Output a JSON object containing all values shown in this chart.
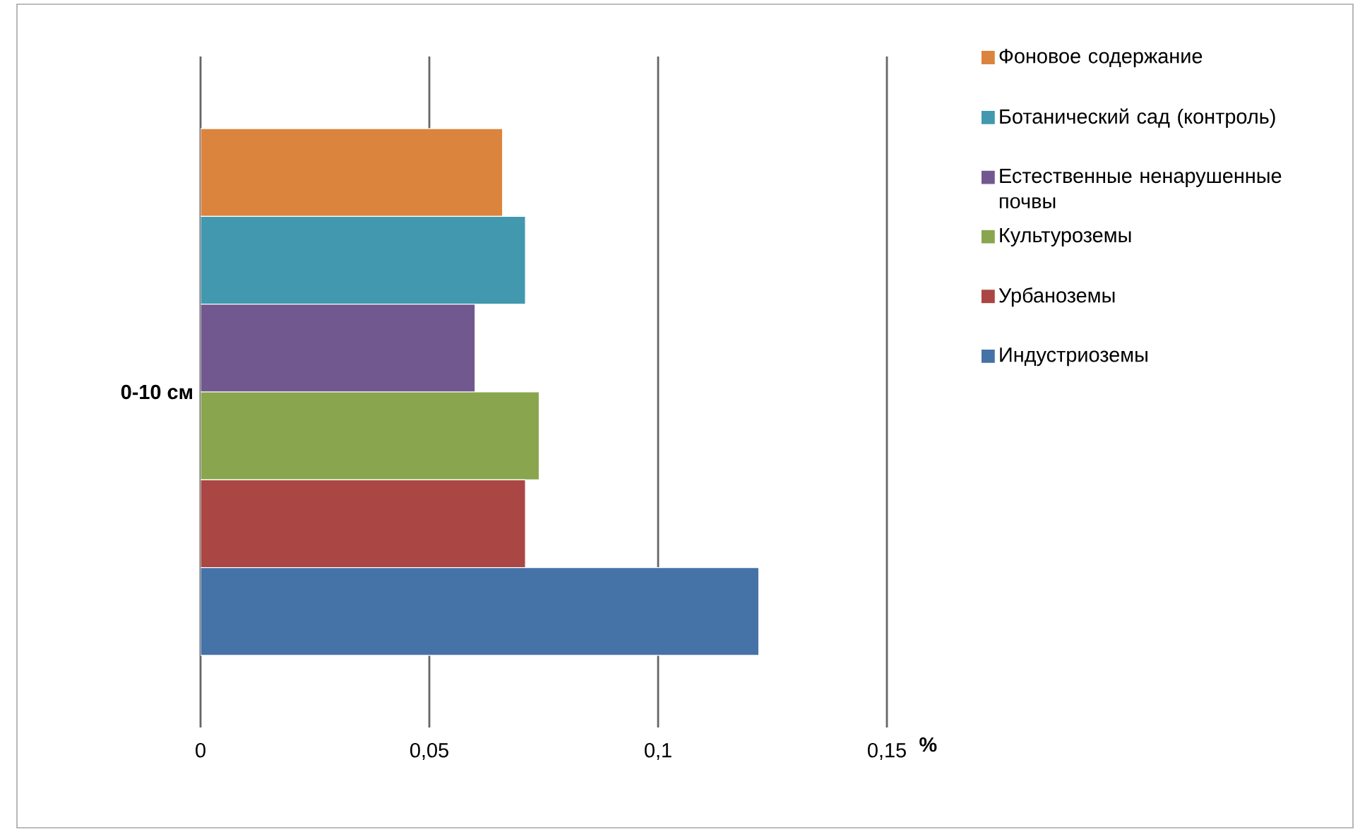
{
  "chart_data": {
    "type": "bar",
    "orientation": "horizontal",
    "categories": [
      "0-10 см"
    ],
    "xlabel": "%",
    "series": [
      {
        "name": "Фоновое содержание",
        "color": "#db843d",
        "values": [
          0.066
        ]
      },
      {
        "name": "Ботанический сад (контроль)",
        "color": "#4198af",
        "values": [
          0.071
        ]
      },
      {
        "name": "Естественные ненарушенные почвы",
        "color": "#71588f",
        "values": [
          0.06
        ]
      },
      {
        "name": "Культуроземы",
        "color": "#89a54e",
        "values": [
          0.074
        ]
      },
      {
        "name": "Урбаноземы",
        "color": "#aa4643",
        "values": [
          0.071
        ]
      },
      {
        "name": "Индустриоземы",
        "color": "#4572a7",
        "values": [
          0.122
        ]
      }
    ],
    "xlim": [
      0,
      0.15
    ],
    "xticks": [
      0,
      {
        "value": 0.05,
        "label": "0,05"
      },
      {
        "value": 0.1,
        "label": "0,1"
      },
      {
        "value": 0.15,
        "label": "0,15"
      }
    ],
    "grid": "x",
    "legend": "right"
  }
}
